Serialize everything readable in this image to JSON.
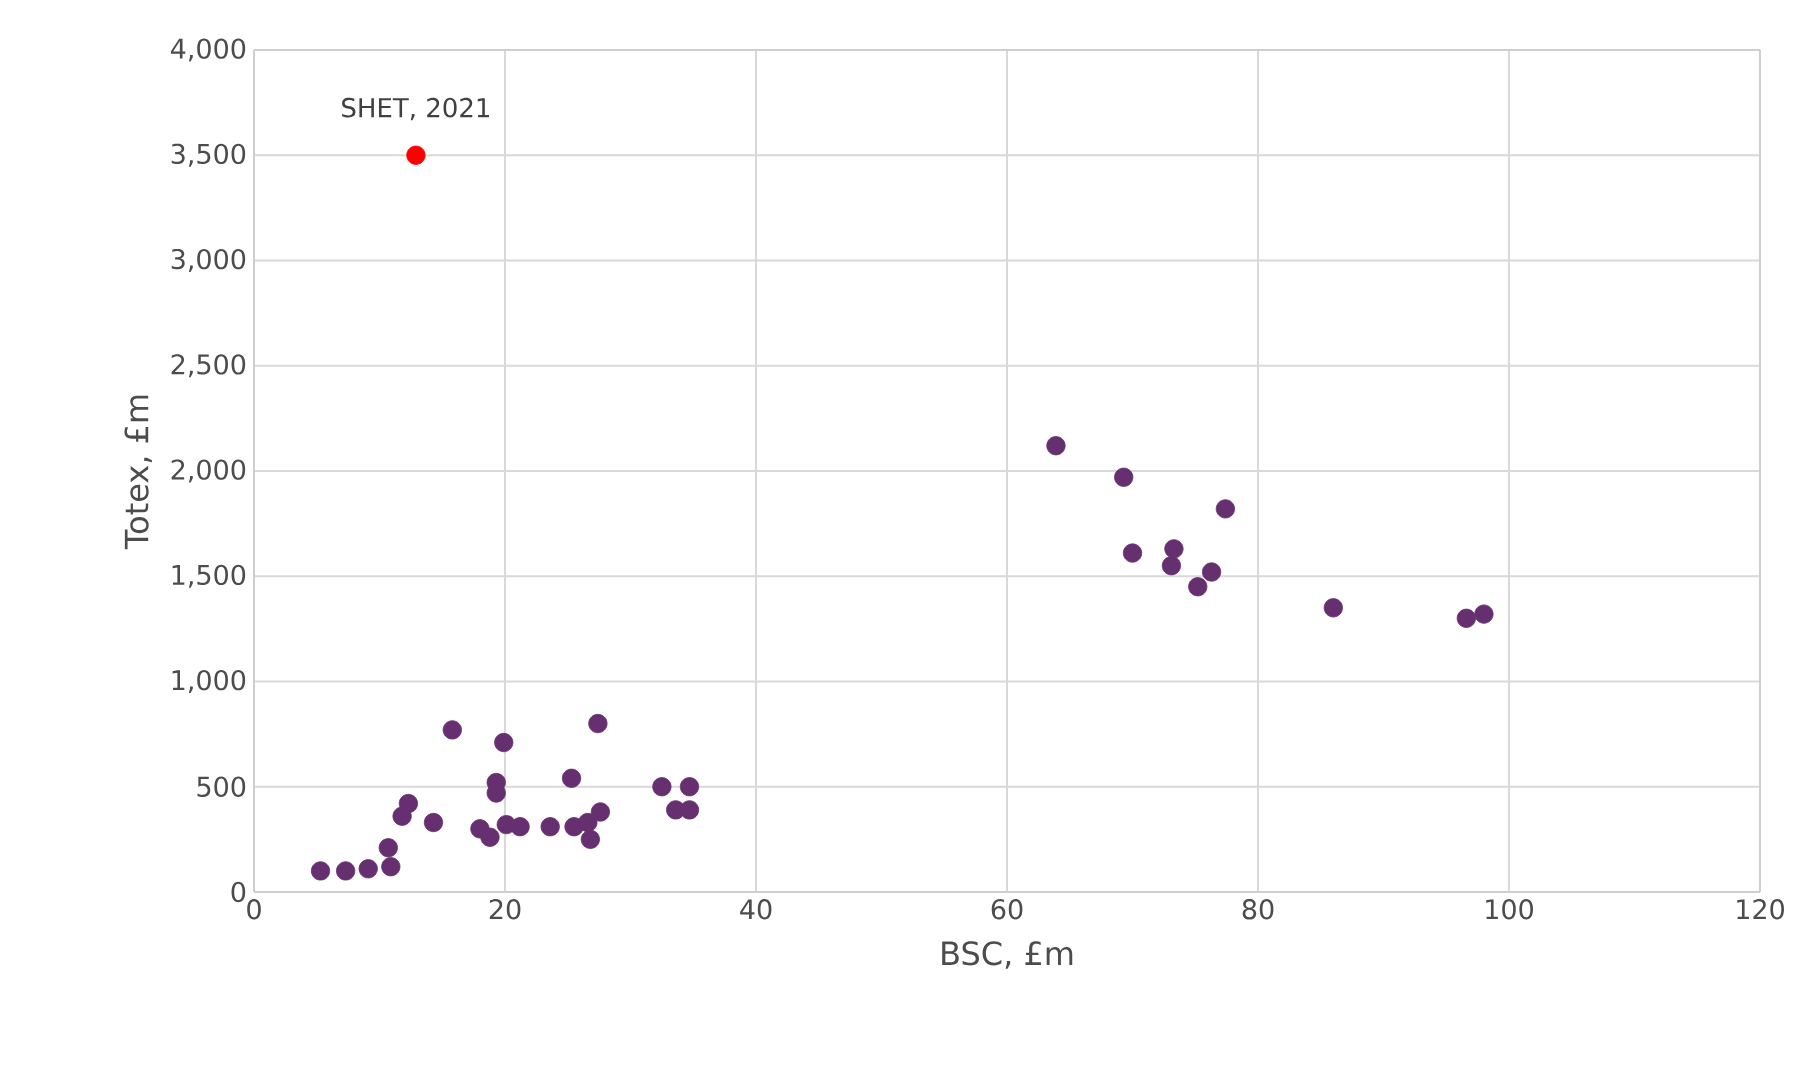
{
  "chart_data": {
    "type": "scatter",
    "xlabel": "BSC, £m",
    "ylabel": "Totex, £m",
    "xlim": [
      0,
      120
    ],
    "ylim": [
      0,
      4000
    ],
    "xticks": [
      0,
      20,
      40,
      60,
      80,
      100,
      120
    ],
    "yticks": [
      {
        "value": 0,
        "label": "0"
      },
      {
        "value": 500,
        "label": "500"
      },
      {
        "value": 1000,
        "label": "1,000"
      },
      {
        "value": 1500,
        "label": "1,500"
      },
      {
        "value": 2000,
        "label": "2,000"
      },
      {
        "value": 2500,
        "label": "2,500"
      },
      {
        "value": 3000,
        "label": "3,000"
      },
      {
        "value": 3500,
        "label": "3,500"
      },
      {
        "value": 4000,
        "label": "4,000"
      }
    ],
    "grid": true,
    "annotations": [
      {
        "text": "SHET, 2021",
        "x": 12.9,
        "y": 3500
      }
    ],
    "series": [
      {
        "color": "#663070",
        "x": [
          5.3,
          7.3,
          9.1,
          10.7,
          10.9,
          11.8,
          12.3,
          14.3,
          15.8,
          18.0,
          18.8,
          19.3,
          19.3,
          19.9,
          20.1,
          21.2,
          23.6,
          25.3,
          25.5,
          26.6,
          26.8,
          27.6,
          27.4,
          32.5,
          33.6,
          34.7,
          34.7,
          63.9,
          69.3,
          77.4,
          70.0,
          73.3,
          73.1,
          76.3,
          75.2,
          86.0,
          96.6,
          98.0
        ],
        "values": [
          100,
          100,
          110,
          210,
          120,
          360,
          420,
          330,
          770,
          300,
          260,
          520,
          470,
          710,
          320,
          310,
          310,
          540,
          310,
          330,
          250,
          380,
          800,
          500,
          390,
          500,
          390,
          2120,
          1970,
          1820,
          1610,
          1630,
          1550,
          1520,
          1450,
          1350,
          1300,
          1320
        ]
      },
      {
        "color": "#ff0000",
        "x": [
          12.9
        ],
        "values": [
          3500
        ]
      }
    ]
  }
}
